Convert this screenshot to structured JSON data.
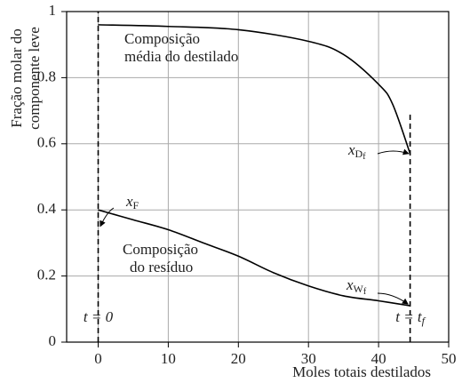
{
  "chart_data": {
    "type": "line",
    "ylabel": [
      "Fração molar do",
      "componente leve"
    ],
    "xlabel": "Moles totais destilados",
    "xlim": [
      -4.5,
      50
    ],
    "xticks": [
      0,
      10,
      20,
      30,
      40,
      50
    ],
    "ylim": [
      0,
      1
    ],
    "yticks": [
      0,
      0.2,
      0.4,
      0.6,
      0.8,
      1
    ],
    "grid": true,
    "series": [
      {
        "label": [
          "Composição",
          "média do destilado"
        ],
        "color": "#000000",
        "x": [
          0,
          10,
          20,
          30,
          35,
          40,
          42,
          44.5
        ],
        "values": [
          0.96,
          0.955,
          0.945,
          0.91,
          0.87,
          0.78,
          0.72,
          0.57
        ]
      },
      {
        "label": [
          "Composição",
          "do resíduo"
        ],
        "color": "#000000",
        "x": [
          0,
          5,
          10,
          15,
          20,
          25,
          30,
          35,
          40,
          44.5
        ],
        "values": [
          0.4,
          0.37,
          0.34,
          0.3,
          0.26,
          0.21,
          0.17,
          0.14,
          0.125,
          0.11
        ]
      }
    ],
    "markers": [
      {
        "x": 0,
        "ymax": 1,
        "label": {
          "text": "t = 0"
        }
      },
      {
        "x": 44.5,
        "ymax": 0.69,
        "label": {
          "text": "t = t",
          "sub": "f"
        }
      }
    ],
    "annotations": [
      {
        "base": "x",
        "sub": "F"
      },
      {
        "base": "x",
        "sub": "D",
        "subsub": "f"
      },
      {
        "base": "x",
        "sub": "W",
        "subsub": "f"
      }
    ]
  }
}
